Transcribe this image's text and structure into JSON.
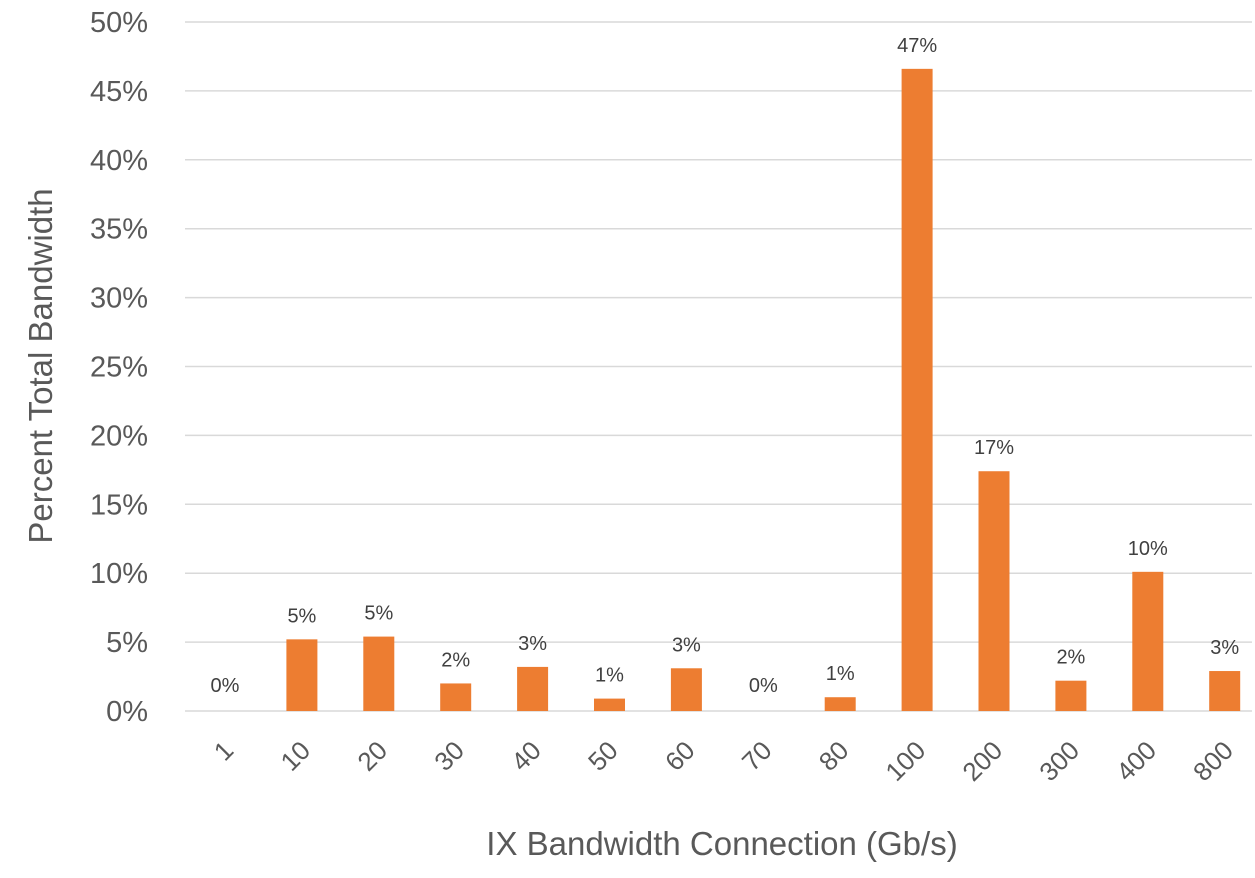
{
  "chart_data": {
    "type": "bar",
    "title": "",
    "xlabel": "IX Bandwidth Connection (Gb/s)",
    "ylabel": "Percent Total Bandwidth",
    "categories": [
      "1",
      "10",
      "20",
      "30",
      "40",
      "50",
      "60",
      "70",
      "80",
      "100",
      "200",
      "300",
      "400",
      "800"
    ],
    "values": [
      0,
      5.2,
      5.4,
      2.0,
      3.2,
      0.9,
      3.1,
      0,
      1.0,
      46.6,
      17.4,
      2.2,
      10.1,
      2.9
    ],
    "data_labels": [
      "0%",
      "5%",
      "5%",
      "2%",
      "3%",
      "1%",
      "3%",
      "0%",
      "1%",
      "47%",
      "17%",
      "2%",
      "10%",
      "3%"
    ],
    "yticks": [
      "0%",
      "5%",
      "10%",
      "15%",
      "20%",
      "25%",
      "30%",
      "35%",
      "40%",
      "45%",
      "50%"
    ],
    "ylim": [
      0,
      50
    ],
    "grid": true,
    "legend": "none",
    "bar_color": "#ED7D31"
  }
}
